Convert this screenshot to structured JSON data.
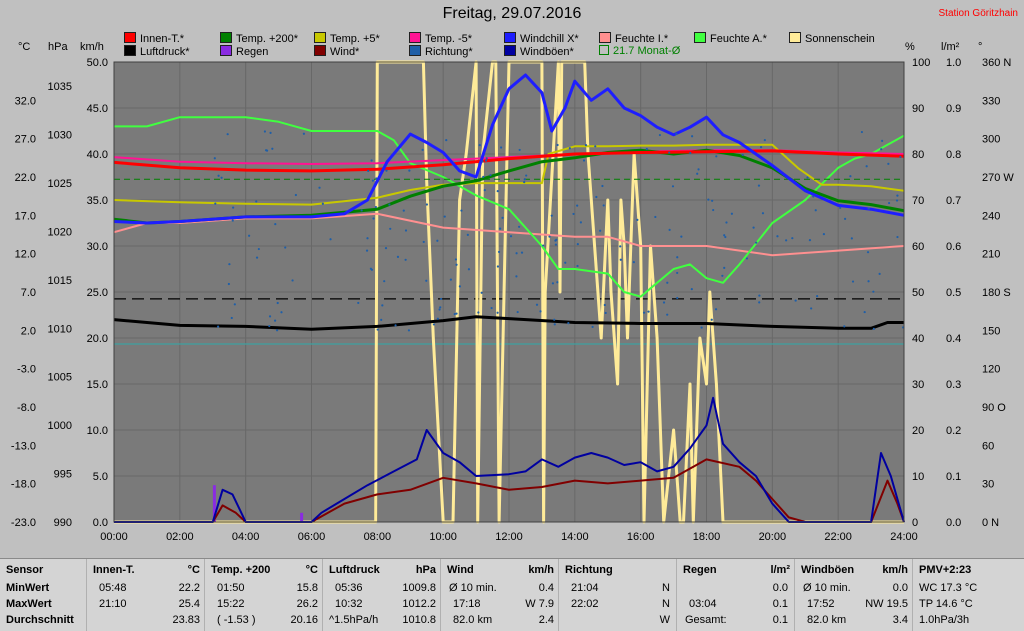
{
  "title": "Freitag, 29.07.2016",
  "station": "Station Göritzhain",
  "legend": [
    {
      "label": "Innen-T.*",
      "color": "#ff0000"
    },
    {
      "label": "Luftdruck*",
      "color": "#000000"
    },
    {
      "label": "Temp. +200*",
      "color": "#008000"
    },
    {
      "label": "Regen",
      "color": "#8a2be2"
    },
    {
      "label": "Temp. +5*",
      "color": "#c8c800"
    },
    {
      "label": "Wind*",
      "color": "#800000"
    },
    {
      "label": "Temp. -5*",
      "color": "#ff1493"
    },
    {
      "label": "Richtung*",
      "color": "#1f5fa8"
    },
    {
      "label": "Windchill X*",
      "color": "#1e1eff"
    },
    {
      "label": "Windböen*",
      "color": "#0000a0"
    },
    {
      "label": "Feuchte I.*",
      "color": "#ff9090"
    },
    {
      "label": "21.7 Monat-Ø",
      "color": "#008000"
    },
    {
      "label": "Feuchte A.*",
      "color": "#40ff40"
    },
    {
      "label": "Sonnenschein",
      "color": "#ffeb99"
    }
  ],
  "axis_units": {
    "temp": "°C",
    "pressure": "hPa",
    "wind": "km/h",
    "humidity": "%",
    "rain": "l/m²",
    "direction": "°"
  },
  "chart_data": {
    "type": "line",
    "title": "Freitag, 29.07.2016",
    "x_ticks": [
      "00:00",
      "02:00",
      "04:00",
      "06:00",
      "08:00",
      "10:00",
      "12:00",
      "14:00",
      "16:00",
      "18:00",
      "20:00",
      "22:00",
      "24:00"
    ],
    "x_range": [
      0,
      24
    ],
    "grid": true,
    "axes": {
      "temp": {
        "range": [
          -23.0,
          37.0
        ],
        "ticks": [
          "32.0",
          "27.0",
          "22.0",
          "17.0",
          "12.0",
          "7.0",
          "2.0",
          "-3.0",
          "-8.0",
          "-13.0",
          "-18.0",
          "-23.0"
        ]
      },
      "pressure": {
        "range": [
          990,
          1037.5
        ],
        "ticks": [
          "1035",
          "1030",
          "1025",
          "1020",
          "1015",
          "1010",
          "1005",
          "1000",
          "995",
          "990"
        ]
      },
      "wind": {
        "range": [
          0,
          50
        ],
        "ticks": [
          "50.0",
          "45.0",
          "40.0",
          "35.0",
          "30.0",
          "25.0",
          "20.0",
          "15.0",
          "10.0",
          "5.0",
          "0.0"
        ]
      },
      "humidity": {
        "range": [
          0,
          100
        ],
        "ticks": [
          "100",
          "90",
          "80",
          "70",
          "60",
          "50",
          "40",
          "30",
          "20",
          "10",
          "0"
        ]
      },
      "rain": {
        "range": [
          0,
          1.0
        ],
        "ticks": [
          "1.0",
          "0.9",
          "0.8",
          "0.7",
          "0.6",
          "0.5",
          "0.4",
          "0.3",
          "0.2",
          "0.1",
          "0.0"
        ]
      },
      "direction": {
        "range": [
          0,
          360
        ],
        "ticks": [
          "360 N",
          "330",
          "300",
          "270 W",
          "240",
          "210",
          "180 S",
          "150",
          "120",
          "90 O",
          "60",
          "30",
          "0 N"
        ]
      }
    },
    "series": [
      {
        "name": "Innen-T.*",
        "axis": "temp",
        "color": "#ff0000",
        "width": 3,
        "x": [
          0,
          2,
          4,
          6,
          8,
          10,
          12,
          14,
          16,
          18,
          20,
          22,
          24
        ],
        "y": [
          23.9,
          23.2,
          22.9,
          22.8,
          23.0,
          23.6,
          24.4,
          25.0,
          25.2,
          25.3,
          25.4,
          25.0,
          24.7
        ]
      },
      {
        "name": "Luftdruck*",
        "axis": "pressure",
        "color": "#000000",
        "width": 3,
        "x": [
          0,
          2,
          4,
          6,
          8,
          10,
          11,
          12,
          14,
          16,
          18,
          20,
          22,
          23,
          23.5,
          24
        ],
        "y": [
          1010.9,
          1010.3,
          1010.2,
          1009.9,
          1010.2,
          1010.8,
          1011.2,
          1011.0,
          1010.6,
          1010.5,
          1010.5,
          1010.2,
          1010.0,
          1010.0,
          1010.6,
          1010.6
        ]
      },
      {
        "name": "Temp. +200*",
        "axis": "temp",
        "color": "#008000",
        "width": 3,
        "x": [
          0,
          1,
          2,
          4,
          6,
          8,
          9,
          10,
          11,
          12,
          13,
          14,
          15,
          16,
          17,
          18,
          19,
          20,
          21,
          22,
          23,
          24
        ],
        "y": [
          16.5,
          16.0,
          16.2,
          16.8,
          17.0,
          17.8,
          19.5,
          20.8,
          21.5,
          22.8,
          24.0,
          24.5,
          25.2,
          25.5,
          25.0,
          25.5,
          24.8,
          23.2,
          20.5,
          18.9,
          18.4,
          17.6
        ]
      },
      {
        "name": "Temp. +5*",
        "axis": "temp",
        "color": "#c8c800",
        "width": 2,
        "x": [
          0,
          2,
          4,
          6,
          8,
          9,
          10,
          11,
          12,
          13,
          13.2,
          14,
          15,
          16,
          17,
          18,
          19,
          20,
          20.8,
          21.5,
          22,
          23,
          24
        ],
        "y": [
          19.0,
          18.7,
          18.5,
          18.4,
          19.3,
          20.3,
          21.0,
          21.2,
          21.2,
          21.2,
          25.0,
          26.0,
          26.0,
          26.1,
          26.1,
          26.2,
          26.2,
          26.2,
          23.1,
          21.0,
          21.0,
          20.8,
          20.2
        ]
      },
      {
        "name": "Temp. -5*",
        "axis": "temp",
        "color": "#ff1493",
        "width": 2,
        "x": [
          0,
          2,
          4,
          6,
          8,
          10,
          12,
          14,
          16,
          18,
          20,
          22,
          24
        ],
        "y": [
          24.6,
          24.0,
          23.8,
          23.7,
          23.8,
          24.2,
          24.6,
          25.0,
          25.3,
          25.5,
          25.5,
          25.2,
          25.0
        ]
      },
      {
        "name": "Windchill X*",
        "axis": "temp",
        "color": "#1e1eff",
        "width": 3,
        "x": [
          0,
          1,
          2,
          4,
          6,
          7,
          7.7,
          8.3,
          9,
          9.5,
          10,
          10.5,
          11,
          11.5,
          12,
          12.5,
          13,
          13.3,
          13.7,
          14,
          14.5,
          15,
          15.5,
          16,
          16.5,
          17,
          17.5,
          18,
          18.5,
          19,
          20,
          21,
          22,
          23,
          24
        ],
        "y": [
          16.2,
          16.0,
          16.2,
          16.8,
          16.8,
          17.2,
          19.0,
          24.0,
          27.6,
          26.5,
          25.2,
          22.8,
          22.0,
          28.8,
          33.5,
          35.3,
          33.0,
          28.0,
          31.0,
          34.5,
          32.0,
          33.5,
          31.0,
          30.0,
          28.5,
          27.5,
          28.5,
          29.8,
          27.5,
          26.5,
          23.5,
          20.2,
          18.3,
          17.8,
          17.0
        ]
      },
      {
        "name": "Feuchte I.*",
        "axis": "humidity",
        "color": "#ff9090",
        "width": 2,
        "x": [
          0,
          1,
          2,
          4,
          6,
          8,
          10,
          12,
          14,
          15,
          16,
          18,
          20,
          22,
          24
        ],
        "y": [
          63,
          65,
          65,
          66,
          66,
          67,
          64,
          63,
          62,
          62,
          60,
          60,
          58,
          59,
          60
        ]
      },
      {
        "name": "Feuchte A.*",
        "axis": "humidity",
        "color": "#40ff40",
        "width": 2,
        "x": [
          0,
          1,
          2,
          3,
          4,
          5,
          6,
          7,
          8,
          8.5,
          9,
          10,
          11,
          12,
          12.5,
          13,
          13.5,
          14,
          15,
          15.5,
          16,
          16.5,
          17,
          17.5,
          18,
          18.5,
          19,
          20,
          21,
          22,
          22.5,
          23,
          23.5,
          24
        ],
        "y": [
          86,
          86,
          88,
          88,
          88,
          87,
          85,
          85,
          85,
          83,
          78,
          75,
          71,
          68,
          64,
          60,
          55,
          55,
          54,
          50,
          49,
          52,
          55,
          56,
          53,
          52,
          56,
          65,
          70,
          77,
          79,
          80,
          82,
          84
        ]
      },
      {
        "name": "Windböen*",
        "axis": "wind",
        "color": "#0000a0",
        "width": 2,
        "x": [
          0,
          1.5,
          3.0,
          3.3,
          3.6,
          4.0,
          6.0,
          6.3,
          7,
          7.7,
          8.5,
          9.2,
          9.5,
          10,
          10.5,
          11,
          12,
          12.5,
          13,
          13.5,
          14,
          14.5,
          15,
          15.5,
          16,
          16.5,
          17,
          17.5,
          18,
          18.2,
          18.5,
          19,
          19.5,
          20,
          20.5,
          21,
          22,
          23,
          23.3,
          23.6,
          24
        ],
        "y": [
          0,
          0,
          0,
          3.5,
          3.0,
          0,
          0,
          1.0,
          2.5,
          4.0,
          5.5,
          6.8,
          10.0,
          7.5,
          6.5,
          5.0,
          5.2,
          5.5,
          6.8,
          6.0,
          7.0,
          7.5,
          7.0,
          6.2,
          6.5,
          5.5,
          6.0,
          8.0,
          10.5,
          13.5,
          8.5,
          6.5,
          5.0,
          2.0,
          0,
          0,
          0,
          0,
          7.5,
          5.0,
          0
        ]
      },
      {
        "name": "Wind*",
        "axis": "wind",
        "color": "#800000",
        "width": 2,
        "x": [
          0,
          3.0,
          3.3,
          3.7,
          4.0,
          6.0,
          6.5,
          7,
          8,
          9,
          10,
          11,
          12,
          13,
          14,
          15,
          16,
          17,
          18,
          19,
          19.5,
          20,
          20.5,
          21,
          22,
          23,
          23.5,
          23.8,
          24
        ],
        "y": [
          0,
          0,
          1.8,
          1.0,
          0,
          0,
          1.0,
          2.0,
          3.0,
          3.5,
          4.8,
          4.2,
          3.5,
          3.8,
          4.5,
          4.2,
          4.5,
          4.8,
          6.8,
          6.0,
          4.5,
          2.5,
          0.5,
          0,
          0,
          0,
          4.5,
          2.0,
          0
        ]
      },
      {
        "name": "Regen",
        "axis": "rain",
        "color": "#8a2be2",
        "width": 3,
        "x": [
          3.05,
          3.05,
          5.7,
          5.7
        ],
        "y": [
          0.08,
          0,
          0.02,
          0
        ],
        "bars": true
      },
      {
        "name": "Sonnenschein",
        "axis": "humidity",
        "color": "#ffeb99",
        "width": 3,
        "x": [
          0,
          7.95,
          8.0,
          8.4,
          8.5,
          9.4,
          9.5,
          9.7,
          10.0,
          10.3,
          10.5,
          10.7,
          11.0,
          11.05,
          11.2,
          11.5,
          11.6,
          11.7,
          12.0,
          13.0,
          13.05,
          13.1,
          13.5,
          13.55,
          13.6,
          14.3,
          14.4,
          14.8,
          15.0,
          15.1,
          15.3,
          15.4,
          15.5,
          15.6,
          15.8,
          16.0,
          16.1,
          16.3,
          16.5,
          16.7,
          17.0,
          17.2,
          17.3,
          17.5,
          17.6,
          17.8,
          18.0,
          18.1,
          18.3,
          18.5,
          20.0,
          24.0
        ],
        "y": [
          0,
          0,
          100,
          100,
          100,
          100,
          74,
          40,
          0,
          0,
          70,
          80,
          100,
          0,
          80,
          100,
          100,
          0,
          100,
          100,
          0,
          50,
          100,
          50,
          100,
          100,
          80,
          40,
          70,
          50,
          30,
          70,
          60,
          40,
          80,
          60,
          0,
          60,
          40,
          0,
          20,
          0,
          0,
          30,
          0,
          40,
          30,
          50,
          30,
          0,
          0,
          0
        ]
      },
      {
        "name": "21.7 Monat-Ø",
        "axis": "temp",
        "color": "#008000",
        "dash": "6,4",
        "width": 1,
        "x": [
          0,
          24
        ],
        "y": [
          21.7,
          21.7
        ]
      }
    ],
    "reference_lines": [
      {
        "axis": "humidity",
        "value": 48.5,
        "color": "#000000",
        "dash": "12,6"
      },
      {
        "axis": "humidity",
        "value": 38.7,
        "color": "#3fa0a0",
        "dash": ""
      }
    ]
  },
  "stats": {
    "sensor": {
      "head": "Sensor",
      "rows": [
        "MinWert",
        "MaxWert",
        "Durchschnitt"
      ]
    },
    "innen": {
      "head": "Innen-T.",
      "unit": "°C",
      "min_time": "05:48",
      "min": "22.2",
      "max_time": "21:10",
      "max": "25.4",
      "avg": "23.83"
    },
    "temp200": {
      "head": "Temp. +200",
      "unit": "°C",
      "min_time": "01:50",
      "min": "15.8",
      "max_time": "15:22",
      "max": "26.2",
      "extra": "( -1.53 )",
      "avg": "20.16"
    },
    "druck": {
      "head": "Luftdruck",
      "unit": "hPa",
      "min_time": "05:36",
      "min": "1009.8",
      "max_time": "10:32",
      "max": "1012.2",
      "extra": "^1.5hPa/h",
      "avg": "1010.8"
    },
    "wind": {
      "head": "Wind",
      "unit": "km/h",
      "r1a": "Ø 10 min.",
      "r1b": "0.4",
      "r2a": "17:18",
      "r2b": "W 7.9",
      "r3a": "82.0 km",
      "r3b": "2.4"
    },
    "richtung": {
      "head": "Richtung",
      "r1a": "21:04",
      "r1b": "N",
      "r2a": "22:02",
      "r2b": "N",
      "r3b": "W"
    },
    "regen": {
      "head": "Regen",
      "unit": "l/m²",
      "r1b": "0.0",
      "r2a": "03:04",
      "r2b": "0.1",
      "r3a": "Gesamt:",
      "r3b": "0.1"
    },
    "boeen": {
      "head": "Windböen",
      "unit": "km/h",
      "r1a": "Ø 10 min.",
      "r1b": "0.0",
      "r2a": "17:52",
      "r2b": "NW 19.5",
      "r3a": "82.0 km",
      "r3b": "3.4"
    },
    "pmv": {
      "head": "PMV+2:23",
      "r1": "WC 17.3 °C",
      "r2": "TP 14.6 °C",
      "r3": "1.0hPa/3h"
    }
  }
}
